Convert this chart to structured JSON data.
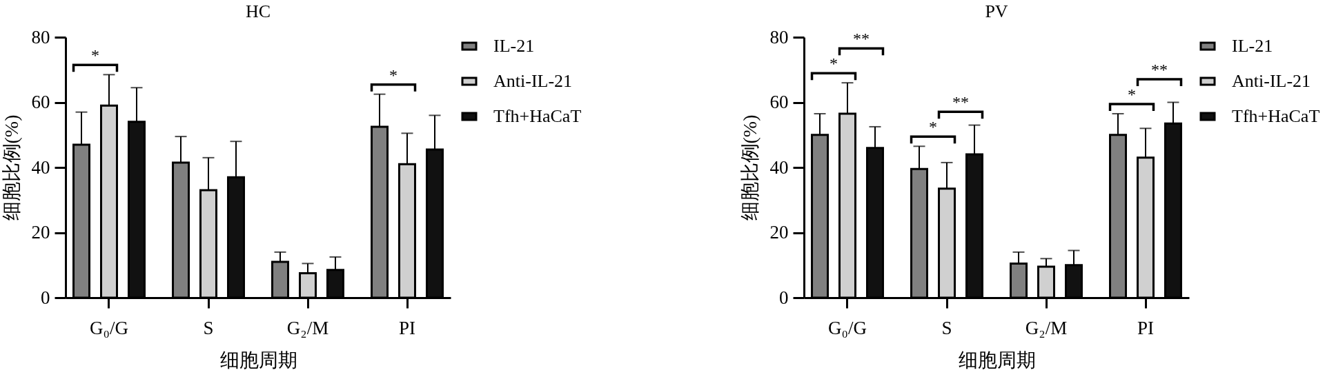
{
  "chart_data": [
    {
      "type": "bar",
      "title": "HC",
      "xlabel": "细胞周期",
      "ylabel": "细胞比例(%)",
      "categories": [
        "G₀/G",
        "S",
        "G₂/M",
        "PI"
      ],
      "series": [
        {
          "name": "IL-21",
          "color": "#808080",
          "values": [
            47,
            41.5,
            11,
            52.5
          ],
          "errors": [
            [
              47,
              57
            ],
            [
              41.5,
              49.5
            ],
            [
              11,
              14
            ],
            [
              52.5,
              62.5
            ]
          ]
        },
        {
          "name": "Anti-IL-21",
          "color": "#d0d0d0",
          "values": [
            59,
            33,
            7.5,
            41
          ],
          "errors": [
            [
              59,
              68.5
            ],
            [
              33,
              43
            ],
            [
              7.5,
              10.5
            ],
            [
              41,
              50.5
            ]
          ]
        },
        {
          "name": "Tfh+HaCaT",
          "color": "#111111",
          "values": [
            54,
            37,
            8.5,
            45.5
          ],
          "errors": [
            [
              54,
              64.5
            ],
            [
              37,
              48
            ],
            [
              8.5,
              12.5
            ],
            [
              45.5,
              56
            ]
          ]
        }
      ],
      "ylim": [
        0,
        80
      ],
      "yticks": [
        0,
        20,
        40,
        60,
        80
      ],
      "legend": "top right",
      "annotations": [
        "*",
        "*"
      ]
    },
    {
      "type": "bar",
      "title": "PV",
      "xlabel": "细胞周期",
      "ylabel": "细胞比例(%)",
      "categories": [
        "G₀/G",
        "S",
        "G₂/M",
        "PI"
      ],
      "series": [
        {
          "name": "IL-21",
          "color": "#808080",
          "values": [
            50,
            39.5,
            10.5,
            50
          ],
          "errors": [
            [
              50,
              56.5
            ],
            [
              39.5,
              46.5
            ],
            [
              10.5,
              14
            ],
            [
              50,
              56.5
            ]
          ]
        },
        {
          "name": "Anti-IL-21",
          "color": "#d0d0d0",
          "values": [
            56.5,
            33.5,
            9.5,
            43
          ],
          "errors": [
            [
              56.5,
              66
            ],
            [
              33.5,
              41.5
            ],
            [
              9.5,
              12
            ],
            [
              43,
              52
            ]
          ]
        },
        {
          "name": "Tfh+HaCaT",
          "color": "#111111",
          "values": [
            46,
            44,
            10,
            53.5
          ],
          "errors": [
            [
              46,
              52.5
            ],
            [
              44,
              53
            ],
            [
              10,
              14.5
            ],
            [
              53.5,
              60
            ]
          ]
        }
      ],
      "ylim": [
        0,
        80
      ],
      "yticks": [
        0,
        20,
        40,
        60,
        80
      ],
      "legend": "top right",
      "annotations": [
        "*",
        "**",
        "*",
        "**",
        "*",
        "**"
      ]
    }
  ]
}
